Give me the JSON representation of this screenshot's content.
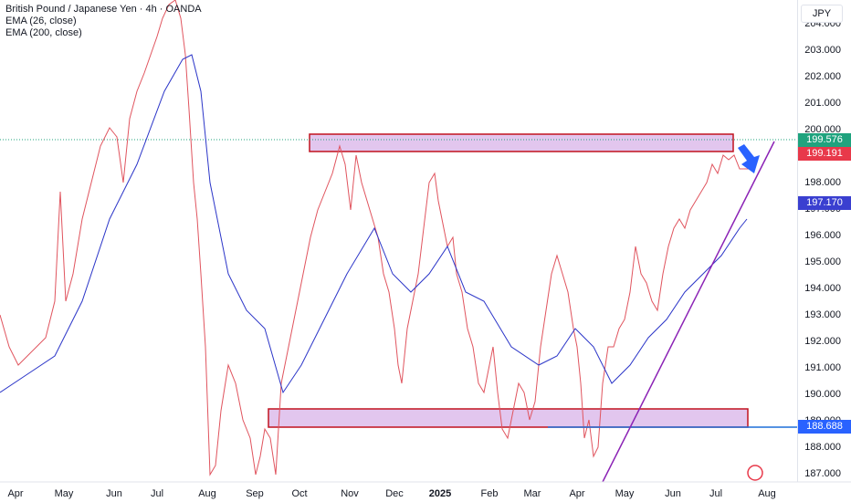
{
  "legend": {
    "title": "British Pound / Japanese Yen · 4h · OANDA",
    "ema1": "EMA (26, close)",
    "ema2": "EMA (200, close)"
  },
  "currency": "JPY",
  "price_axis_ticks": [
    "204.000",
    "203.000",
    "202.000",
    "201.000",
    "200.000",
    "198.000",
    "197.000",
    "196.000",
    "195.000",
    "194.000",
    "193.000",
    "192.000",
    "191.000",
    "190.000",
    "189.000",
    "188.000",
    "187.000"
  ],
  "time_axis_ticks": [
    "Apr",
    "May",
    "Jun",
    "Jul",
    "Aug",
    "Sep",
    "Oct",
    "Nov",
    "Dec",
    "2025",
    "Feb",
    "Mar",
    "Apr",
    "May",
    "Jun",
    "Jul",
    "Aug"
  ],
  "price_tags": {
    "last": "199.576",
    "secondary": "199.191",
    "ema200": "197.170",
    "support": "188.688"
  },
  "colors": {
    "price_line": "#e0545e",
    "ema_line": "#2b35c8",
    "zone_fill": "#e2c6ee",
    "zone_border": "#c1121f",
    "trendline": "#8b22b5",
    "support_line": "#1e6fd9",
    "arrow": "#2962ff",
    "tag_last": "#1fa37e",
    "tag_secondary": "#e8394a",
    "tag_ema": "#3a3fd0",
    "tag_support": "#2962ff"
  }
}
